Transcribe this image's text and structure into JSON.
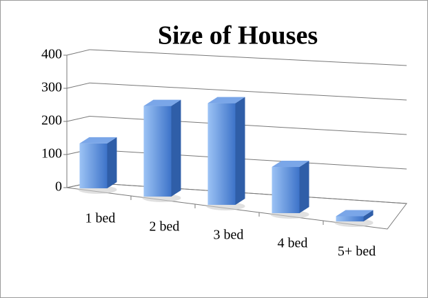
{
  "chart_data": {
    "type": "bar3d",
    "title": "Size of Houses",
    "categories": [
      "1 bed",
      "2 bed",
      "3 bed",
      "4 bed",
      "5+ bed"
    ],
    "values": [
      135,
      270,
      300,
      135,
      15
    ],
    "color": "#4f81bd",
    "ylim": [
      0,
      400
    ],
    "yticks": [
      0,
      100,
      200,
      300,
      400
    ],
    "grid": true
  }
}
